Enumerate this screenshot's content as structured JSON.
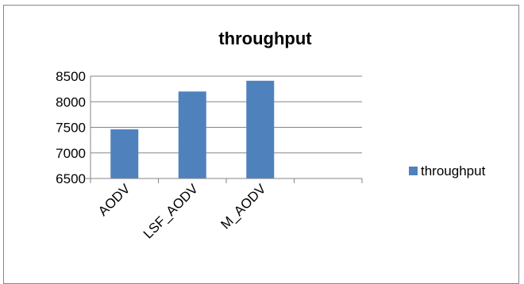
{
  "chart_data": {
    "type": "bar",
    "title": "throughput",
    "xlabel": "",
    "ylabel": "",
    "categories": [
      "AODV",
      "LSF_AODV",
      "M_AODV",
      ""
    ],
    "series": [
      {
        "name": "throughput",
        "values": [
          7460,
          8200,
          8410,
          null
        ],
        "color": "#4f81bd"
      }
    ],
    "ylim": [
      6500,
      8500
    ],
    "yticks": [
      6500,
      7000,
      7500,
      8000,
      8500
    ],
    "ytick_labels": [
      "6500",
      "7000",
      "7500",
      "8000",
      "8500"
    ],
    "grid": true,
    "legend": "right"
  }
}
